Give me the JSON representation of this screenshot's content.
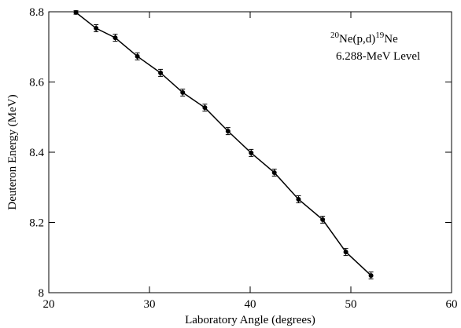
{
  "chart_data": {
    "type": "scatter",
    "x_label": "Laboratory Angle (degrees)",
    "y_label": "Deuteron Energy (MeV)",
    "annotation": {
      "parts": [
        {
          "text": "20",
          "sup": true
        },
        {
          "text": "Ne(p,d)",
          "sup": false
        },
        {
          "text": "19",
          "sup": true
        },
        {
          "text": "Ne",
          "sup": false
        }
      ],
      "subtitle": "6.288-MeV Level"
    },
    "x": [
      22.7,
      24.7,
      26.6,
      28.8,
      31.1,
      33.3,
      35.5,
      37.8,
      40.1,
      42.4,
      44.8,
      47.2,
      49.5,
      52.0
    ],
    "series": [
      {
        "color": "#000000",
        "values": [
          8.798,
          8.753,
          8.726,
          8.673,
          8.626,
          8.57,
          8.527,
          8.46,
          8.398,
          8.342,
          8.266,
          8.208,
          8.116,
          8.049
        ],
        "errors": [
          0.005,
          0.01,
          0.01,
          0.01,
          0.01,
          0.01,
          0.01,
          0.01,
          0.01,
          0.01,
          0.01,
          0.01,
          0.01,
          0.01
        ]
      }
    ],
    "connect": true,
    "xlim": [
      20,
      60
    ],
    "xticks": [
      20,
      30,
      40,
      50,
      60
    ],
    "ylim": [
      8,
      8.8
    ],
    "yticks": [
      8,
      8.2,
      8.4,
      8.6,
      8.8
    ]
  }
}
